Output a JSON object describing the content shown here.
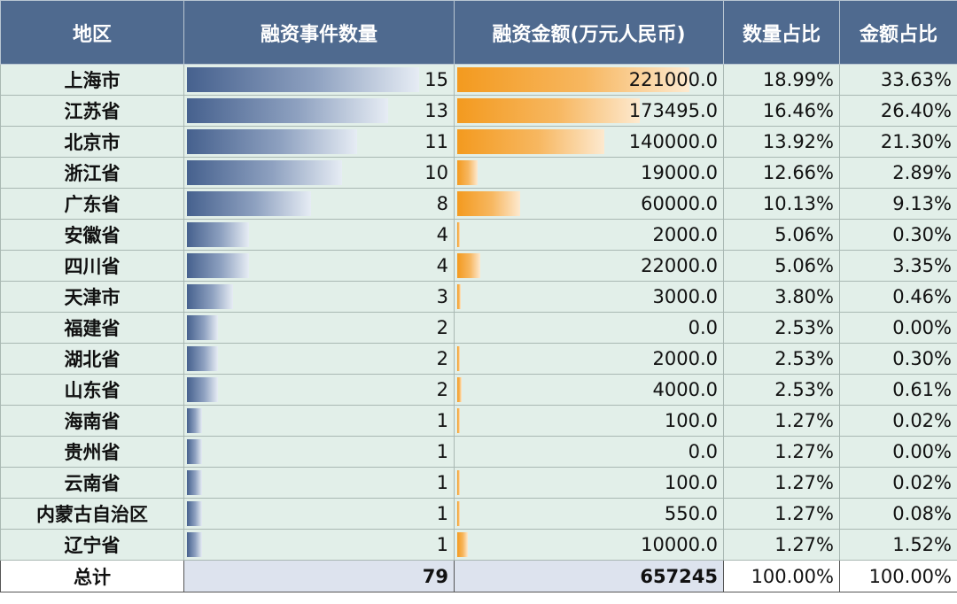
{
  "headers": [
    "地区",
    "融资事件数量",
    "融资金额(万元人民币)",
    "数量占比",
    "金额占比"
  ],
  "max_count": 15,
  "max_amount": 221000,
  "colors": {
    "header_bg": "#4f6a8f",
    "row_bg": "#e2efe9",
    "count_bar": "#46618e",
    "amount_bar": "#f39a1f"
  },
  "rows": [
    {
      "region": "上海市",
      "count": 15,
      "count_text": "15",
      "amount": 221000,
      "amount_text": "221000.0",
      "count_pct": "18.99%",
      "amount_pct": "33.63%"
    },
    {
      "region": "江苏省",
      "count": 13,
      "count_text": "13",
      "amount": 173495,
      "amount_text": "173495.0",
      "count_pct": "16.46%",
      "amount_pct": "26.40%"
    },
    {
      "region": "北京市",
      "count": 11,
      "count_text": "11",
      "amount": 140000,
      "amount_text": "140000.0",
      "count_pct": "13.92%",
      "amount_pct": "21.30%"
    },
    {
      "region": "浙江省",
      "count": 10,
      "count_text": "10",
      "amount": 19000,
      "amount_text": "19000.0",
      "count_pct": "12.66%",
      "amount_pct": "2.89%"
    },
    {
      "region": "广东省",
      "count": 8,
      "count_text": "8",
      "amount": 60000,
      "amount_text": "60000.0",
      "count_pct": "10.13%",
      "amount_pct": "9.13%"
    },
    {
      "region": "安徽省",
      "count": 4,
      "count_text": "4",
      "amount": 2000,
      "amount_text": "2000.0",
      "count_pct": "5.06%",
      "amount_pct": "0.30%"
    },
    {
      "region": "四川省",
      "count": 4,
      "count_text": "4",
      "amount": 22000,
      "amount_text": "22000.0",
      "count_pct": "5.06%",
      "amount_pct": "3.35%"
    },
    {
      "region": "天津市",
      "count": 3,
      "count_text": "3",
      "amount": 3000,
      "amount_text": "3000.0",
      "count_pct": "3.80%",
      "amount_pct": "0.46%"
    },
    {
      "region": "福建省",
      "count": 2,
      "count_text": "2",
      "amount": 0,
      "amount_text": "0.0",
      "count_pct": "2.53%",
      "amount_pct": "0.00%"
    },
    {
      "region": "湖北省",
      "count": 2,
      "count_text": "2",
      "amount": 2000,
      "amount_text": "2000.0",
      "count_pct": "2.53%",
      "amount_pct": "0.30%"
    },
    {
      "region": "山东省",
      "count": 2,
      "count_text": "2",
      "amount": 4000,
      "amount_text": "4000.0",
      "count_pct": "2.53%",
      "amount_pct": "0.61%"
    },
    {
      "region": "海南省",
      "count": 1,
      "count_text": "1",
      "amount": 100,
      "amount_text": "100.0",
      "count_pct": "1.27%",
      "amount_pct": "0.02%"
    },
    {
      "region": "贵州省",
      "count": 1,
      "count_text": "1",
      "amount": 0,
      "amount_text": "0.0",
      "count_pct": "1.27%",
      "amount_pct": "0.00%"
    },
    {
      "region": "云南省",
      "count": 1,
      "count_text": "1",
      "amount": 100,
      "amount_text": "100.0",
      "count_pct": "1.27%",
      "amount_pct": "0.02%"
    },
    {
      "region": "内蒙古自治区",
      "count": 1,
      "count_text": "1",
      "amount": 550,
      "amount_text": "550.0",
      "count_pct": "1.27%",
      "amount_pct": "0.08%"
    },
    {
      "region": "辽宁省",
      "count": 1,
      "count_text": "1",
      "amount": 10000,
      "amount_text": "10000.0",
      "count_pct": "1.27%",
      "amount_pct": "1.52%"
    }
  ],
  "total": {
    "label": "总计",
    "count": "79",
    "amount": "657245",
    "count_pct": "100.00%",
    "amount_pct": "100.00%"
  }
}
